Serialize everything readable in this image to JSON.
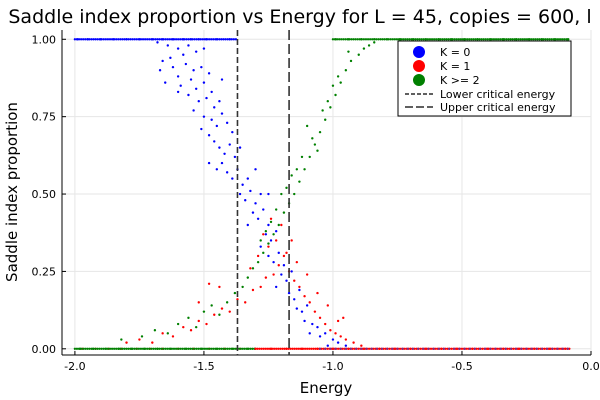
{
  "chart_data": {
    "type": "scatter",
    "title": "Saddle index proportion vs Energy for L = 45, copies = 600, l",
    "xlabel": "Energy",
    "ylabel": "Saddle index proportion",
    "xlim": [
      -2.05,
      0.0
    ],
    "ylim": [
      -0.02,
      1.03
    ],
    "x_ticks": [
      -2.0,
      -1.5,
      -1.0,
      -0.5,
      0.0
    ],
    "x_tick_labels": [
      "-2.0",
      "-1.5",
      "-1.0",
      "-0.5",
      "0.0"
    ],
    "y_ticks": [
      0.0,
      0.25,
      0.5,
      0.75,
      1.0
    ],
    "y_tick_labels": [
      "0.00",
      "0.25",
      "0.50",
      "0.75",
      "1.00"
    ],
    "grid": true,
    "legend_position": "top-right",
    "series": [
      {
        "name": "K = 0",
        "color": "#0000ff",
        "marker": "point"
      },
      {
        "name": "K = 1",
        "color": "#ff0000",
        "marker": "point"
      },
      {
        "name": "K >= 2",
        "color": "#008000",
        "marker": "point"
      }
    ],
    "vlines": [
      {
        "name": "Lower critical energy",
        "x": -1.37,
        "dash": "dense"
      },
      {
        "name": "Upper critical energy",
        "x": -1.17,
        "dash": "long"
      }
    ],
    "points_k0": [
      [
        -1.99,
        1.0
      ],
      [
        -1.95,
        1.0
      ],
      [
        -1.9,
        1.0
      ],
      [
        -1.85,
        1.0
      ],
      [
        -1.8,
        1.0
      ],
      [
        -1.75,
        1.0
      ],
      [
        -1.7,
        1.0
      ],
      [
        -1.66,
        1.0
      ],
      [
        -1.62,
        1.0
      ],
      [
        -1.58,
        1.0
      ],
      [
        -1.55,
        1.0
      ],
      [
        -1.52,
        1.0
      ],
      [
        -1.49,
        1.0
      ],
      [
        -1.45,
        1.0
      ],
      [
        -1.4,
        1.0
      ],
      [
        -1.68,
        0.99
      ],
      [
        -1.64,
        0.98
      ],
      [
        -1.6,
        0.97
      ],
      [
        -1.56,
        0.98
      ],
      [
        -1.53,
        0.96
      ],
      [
        -1.5,
        0.97
      ],
      [
        -1.58,
        0.95
      ],
      [
        -1.63,
        0.94
      ],
      [
        -1.66,
        0.93
      ],
      [
        -1.62,
        0.91
      ],
      [
        -1.57,
        0.92
      ],
      [
        -1.54,
        0.9
      ],
      [
        -1.51,
        0.91
      ],
      [
        -1.48,
        0.89
      ],
      [
        -1.6,
        0.88
      ],
      [
        -1.55,
        0.87
      ],
      [
        -1.67,
        0.9
      ],
      [
        -1.65,
        0.86
      ],
      [
        -1.59,
        0.85
      ],
      [
        -1.53,
        0.84
      ],
      [
        -1.5,
        0.86
      ],
      [
        -1.47,
        0.83
      ],
      [
        -1.56,
        0.82
      ],
      [
        -1.52,
        0.8
      ],
      [
        -1.49,
        0.81
      ],
      [
        -1.46,
        0.78
      ],
      [
        -1.6,
        0.83
      ],
      [
        -1.44,
        0.8
      ],
      [
        -1.54,
        0.77
      ],
      [
        -1.5,
        0.75
      ],
      [
        -1.47,
        0.74
      ],
      [
        -1.45,
        0.72
      ],
      [
        -1.43,
        0.76
      ],
      [
        -1.51,
        0.71
      ],
      [
        -1.48,
        0.69
      ],
      [
        -1.41,
        0.73
      ],
      [
        -1.39,
        0.7
      ],
      [
        -1.46,
        0.67
      ],
      [
        -1.44,
        0.65
      ],
      [
        -1.42,
        0.63
      ],
      [
        -1.4,
        0.66
      ],
      [
        -1.38,
        0.62
      ],
      [
        -1.48,
        0.6
      ],
      [
        -1.45,
        0.58
      ],
      [
        -1.43,
        0.6
      ],
      [
        -1.41,
        0.57
      ],
      [
        -1.39,
        0.55
      ],
      [
        -1.37,
        0.58
      ],
      [
        -1.35,
        0.53
      ],
      [
        -1.33,
        0.55
      ],
      [
        -1.36,
        0.5
      ],
      [
        -1.34,
        0.48
      ],
      [
        -1.32,
        0.51
      ],
      [
        -1.3,
        0.47
      ],
      [
        -1.28,
        0.5
      ],
      [
        -1.31,
        0.44
      ],
      [
        -1.29,
        0.42
      ],
      [
        -1.27,
        0.45
      ],
      [
        -1.25,
        0.4
      ],
      [
        -1.33,
        0.4
      ],
      [
        -1.26,
        0.37
      ],
      [
        -1.24,
        0.35
      ],
      [
        -1.22,
        0.38
      ],
      [
        -1.28,
        0.33
      ],
      [
        -1.25,
        0.3
      ],
      [
        -1.23,
        0.28
      ],
      [
        -1.21,
        0.31
      ],
      [
        -1.19,
        0.27
      ],
      [
        -1.2,
        0.24
      ],
      [
        -1.18,
        0.22
      ],
      [
        -1.16,
        0.25
      ],
      [
        -1.22,
        0.2
      ],
      [
        -1.17,
        0.18
      ],
      [
        -1.15,
        0.16
      ],
      [
        -1.13,
        0.19
      ],
      [
        -1.14,
        0.13
      ],
      [
        -1.12,
        0.12
      ],
      [
        -1.1,
        0.14
      ],
      [
        -1.11,
        0.09
      ],
      [
        -1.08,
        0.08
      ],
      [
        -1.06,
        0.07
      ],
      [
        -1.09,
        0.05
      ],
      [
        -1.05,
        0.04
      ],
      [
        -1.03,
        0.05
      ],
      [
        -1.0,
        0.03
      ],
      [
        -0.98,
        0.02
      ],
      [
        -1.02,
        0.01
      ],
      [
        -0.95,
        0.01
      ],
      [
        -1.25,
        0.5
      ],
      [
        -1.3,
        0.58
      ],
      [
        -1.43,
        0.87
      ],
      [
        -1.36,
        0.65
      ]
    ],
    "points_k1": [
      [
        -1.97,
        0.0
      ],
      [
        -1.92,
        0.0
      ],
      [
        -1.87,
        0.0
      ],
      [
        -1.82,
        0.0
      ],
      [
        -1.76,
        0.0
      ],
      [
        -1.71,
        0.0
      ],
      [
        -1.66,
        0.0
      ],
      [
        -1.6,
        0.0
      ],
      [
        -1.54,
        0.0
      ],
      [
        -1.48,
        0.0
      ],
      [
        -1.42,
        0.0
      ],
      [
        -1.36,
        0.0
      ],
      [
        -1.3,
        0.0
      ],
      [
        -1.24,
        0.0
      ],
      [
        -1.18,
        0.0
      ],
      [
        -1.12,
        0.0
      ],
      [
        -1.06,
        0.0
      ],
      [
        -1.0,
        0.0
      ],
      [
        -0.94,
        0.0
      ],
      [
        -0.88,
        0.0
      ],
      [
        -0.82,
        0.0
      ],
      [
        -0.76,
        0.0
      ],
      [
        -0.7,
        0.0
      ],
      [
        -0.64,
        0.0
      ],
      [
        -0.58,
        0.0
      ],
      [
        -0.52,
        0.0
      ],
      [
        -0.46,
        0.0
      ],
      [
        -0.4,
        0.0
      ],
      [
        -0.34,
        0.0
      ],
      [
        -0.28,
        0.0
      ],
      [
        -0.22,
        0.0
      ],
      [
        -0.16,
        0.0
      ],
      [
        -0.1,
        0.0
      ],
      [
        -1.8,
        0.02
      ],
      [
        -1.75,
        0.03
      ],
      [
        -1.7,
        0.02
      ],
      [
        -1.66,
        0.05
      ],
      [
        -1.62,
        0.04
      ],
      [
        -1.58,
        0.07
      ],
      [
        -1.55,
        0.06
      ],
      [
        -1.52,
        0.09
      ],
      [
        -1.49,
        0.08
      ],
      [
        -1.46,
        0.11
      ],
      [
        -1.43,
        0.13
      ],
      [
        -1.4,
        0.12
      ],
      [
        -1.37,
        0.16
      ],
      [
        -1.34,
        0.15
      ],
      [
        -1.31,
        0.19
      ],
      [
        -1.28,
        0.2
      ],
      [
        -1.26,
        0.23
      ],
      [
        -1.23,
        0.24
      ],
      [
        -1.21,
        0.27
      ],
      [
        -1.19,
        0.3
      ],
      [
        -1.17,
        0.25
      ],
      [
        -1.15,
        0.22
      ],
      [
        -1.13,
        0.2
      ],
      [
        -1.11,
        0.17
      ],
      [
        -1.09,
        0.15
      ],
      [
        -1.07,
        0.12
      ],
      [
        -1.05,
        0.1
      ],
      [
        -1.03,
        0.08
      ],
      [
        -1.01,
        0.06
      ],
      [
        -0.99,
        0.05
      ],
      [
        -0.97,
        0.04
      ],
      [
        -0.95,
        0.03
      ],
      [
        -0.92,
        0.02
      ],
      [
        -0.89,
        0.01
      ],
      [
        -1.25,
        0.33
      ],
      [
        -1.22,
        0.35
      ],
      [
        -1.29,
        0.3
      ],
      [
        -1.2,
        0.4
      ],
      [
        -1.27,
        0.37
      ],
      [
        -1.18,
        0.31
      ],
      [
        -1.24,
        0.42
      ],
      [
        -1.16,
        0.35
      ],
      [
        -1.32,
        0.26
      ],
      [
        -1.48,
        0.21
      ],
      [
        -1.52,
        0.15
      ],
      [
        -1.44,
        0.2
      ],
      [
        -1.14,
        0.28
      ],
      [
        -1.1,
        0.24
      ],
      [
        -1.06,
        0.18
      ],
      [
        -1.02,
        0.14
      ],
      [
        -0.98,
        0.09
      ],
      [
        -0.96,
        0.1
      ]
    ],
    "points_k2": [
      [
        -1.98,
        0.0
      ],
      [
        -1.93,
        0.0
      ],
      [
        -1.88,
        0.0
      ],
      [
        -1.83,
        0.0
      ],
      [
        -1.78,
        0.0
      ],
      [
        -1.73,
        0.0
      ],
      [
        -1.68,
        0.0
      ],
      [
        -1.63,
        0.0
      ],
      [
        -1.57,
        0.0
      ],
      [
        -1.51,
        0.0
      ],
      [
        -1.45,
        0.0
      ],
      [
        -1.39,
        0.0
      ],
      [
        -1.33,
        0.0
      ],
      [
        -1.82,
        0.03
      ],
      [
        -1.74,
        0.04
      ],
      [
        -1.69,
        0.06
      ],
      [
        -1.64,
        0.05
      ],
      [
        -1.6,
        0.08
      ],
      [
        -1.56,
        0.1
      ],
      [
        -1.53,
        0.07
      ],
      [
        -1.5,
        0.12
      ],
      [
        -1.47,
        0.14
      ],
      [
        -1.44,
        0.11
      ],
      [
        -1.41,
        0.15
      ],
      [
        -1.38,
        0.18
      ],
      [
        -1.35,
        0.2
      ],
      [
        -1.33,
        0.23
      ],
      [
        -1.31,
        0.26
      ],
      [
        -1.29,
        0.28
      ],
      [
        -1.27,
        0.31
      ],
      [
        -1.25,
        0.34
      ],
      [
        -1.23,
        0.37
      ],
      [
        -1.21,
        0.4
      ],
      [
        -1.19,
        0.44
      ],
      [
        -1.17,
        0.47
      ],
      [
        -1.15,
        0.5
      ],
      [
        -1.13,
        0.54
      ],
      [
        -1.11,
        0.58
      ],
      [
        -1.09,
        0.62
      ],
      [
        -1.07,
        0.66
      ],
      [
        -1.05,
        0.7
      ],
      [
        -1.03,
        0.74
      ],
      [
        -1.01,
        0.78
      ],
      [
        -0.99,
        0.82
      ],
      [
        -0.97,
        0.86
      ],
      [
        -0.95,
        0.9
      ],
      [
        -0.93,
        0.93
      ],
      [
        -0.9,
        0.95
      ],
      [
        -0.88,
        0.97
      ],
      [
        -0.86,
        0.98
      ],
      [
        -0.84,
        0.99
      ],
      [
        -1.12,
        0.62
      ],
      [
        -1.08,
        0.68
      ],
      [
        -1.14,
        0.58
      ],
      [
        -1.1,
        0.72
      ],
      [
        -1.04,
        0.77
      ],
      [
        -1.0,
        0.85
      ],
      [
        -1.18,
        0.52
      ],
      [
        -1.16,
        0.56
      ],
      [
        -1.06,
        0.64
      ],
      [
        -1.02,
        0.8
      ],
      [
        -0.98,
        0.88
      ],
      [
        -0.94,
        0.96
      ],
      [
        -1.2,
        0.5
      ],
      [
        -1.22,
        0.45
      ],
      [
        -1.24,
        0.41
      ],
      [
        -1.26,
        0.38
      ],
      [
        -1.28,
        0.35
      ],
      [
        -0.99,
        1.0
      ],
      [
        -0.94,
        1.0
      ],
      [
        -0.89,
        1.0
      ],
      [
        -0.84,
        1.0
      ],
      [
        -0.79,
        1.0
      ],
      [
        -0.74,
        1.0
      ],
      [
        -0.69,
        1.0
      ],
      [
        -0.64,
        1.0
      ],
      [
        -0.59,
        1.0
      ],
      [
        -0.54,
        1.0
      ],
      [
        -0.49,
        1.0
      ],
      [
        -0.44,
        1.0
      ],
      [
        -0.39,
        1.0
      ],
      [
        -0.34,
        1.0
      ],
      [
        -0.29,
        1.0
      ],
      [
        -0.24,
        1.0
      ],
      [
        -0.19,
        1.0
      ],
      [
        -0.14,
        1.0
      ],
      [
        -0.09,
        1.0
      ]
    ]
  }
}
